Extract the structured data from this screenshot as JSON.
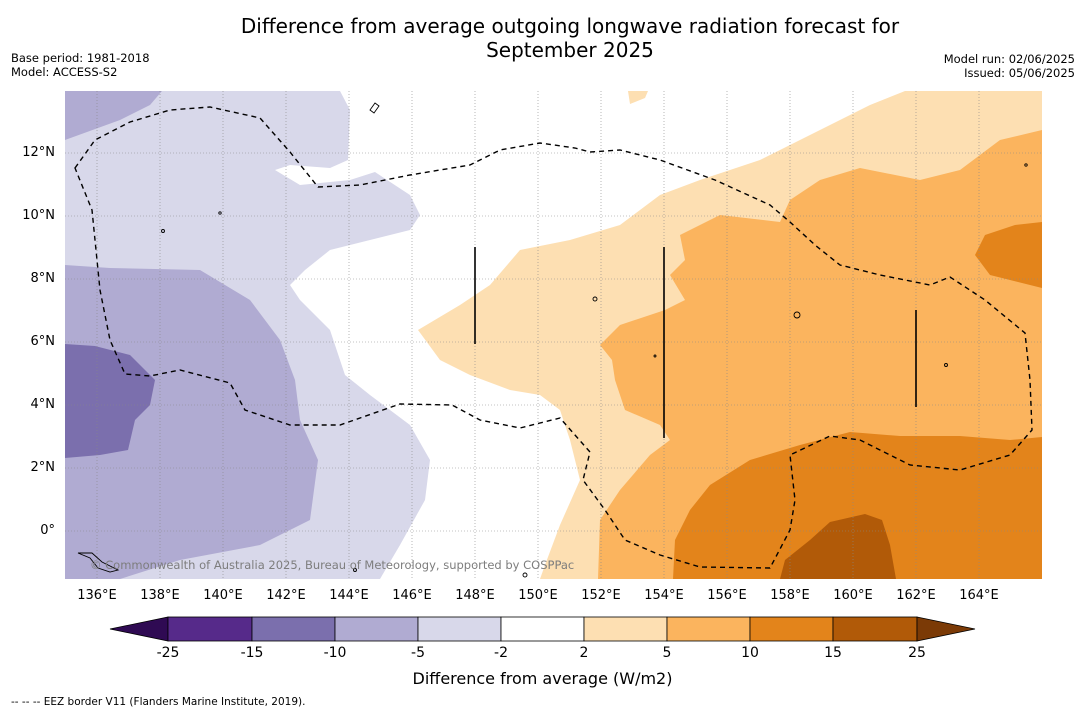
{
  "title_line1": "Difference from average outgoing longwave radiation forecast for",
  "title_line2": "September 2025",
  "base_period": "Base period: 1981-2018",
  "model": "Model: ACCESS-S2",
  "model_run": "Model run: 02/06/2025",
  "issued": "Issued: 05/06/2025",
  "lat_labels": [
    "12°N",
    "10°N",
    "8°N",
    "6°N",
    "4°N",
    "2°N",
    "0°"
  ],
  "lon_labels": [
    "136°E",
    "138°E",
    "140°E",
    "142°E",
    "144°E",
    "146°E",
    "148°E",
    "150°E",
    "152°E",
    "154°E",
    "156°E",
    "158°E",
    "160°E",
    "162°E",
    "164°E"
  ],
  "colorbar": {
    "ticks": [
      "-25",
      "-15",
      "-10",
      "-5",
      "-2",
      "2",
      "5",
      "10",
      "15",
      "25"
    ],
    "colors": [
      "#562a8a",
      "#7b6fad",
      "#b0abd2",
      "#d8d8ea",
      "#ffffff",
      "#fddfb2",
      "#fbb45e",
      "#e3841b",
      "#b15a08"
    ],
    "under_color": "#2f0a53",
    "over_color": "#7b3a06",
    "title": "Difference from average (W/m2)"
  },
  "copyright": "© Commonwealth of Australia 2025, Bureau of Meteorology, supported by COSPPac",
  "footer": "--  --  -- EEZ border V11 (Flanders Marine Institute, 2019)."
}
